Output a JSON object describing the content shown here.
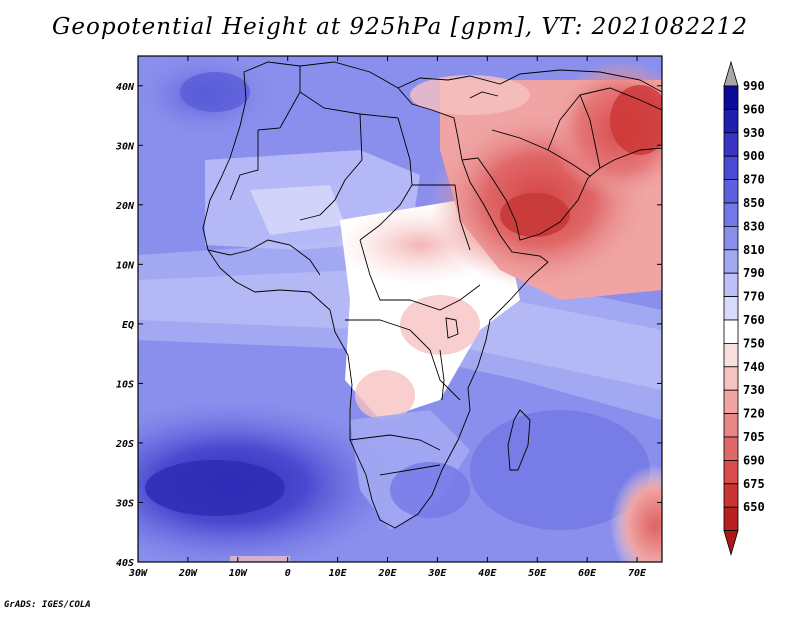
{
  "title": "Geopotential Height at 925hPa [gpm], VT: 2021082212",
  "credit": "GrADS: IGES/COLA",
  "map": {
    "variable": "Geopotential Height",
    "level": "925hPa",
    "units": "gpm",
    "valid_time": "2021082212",
    "lon_range": [
      -30,
      75
    ],
    "lat_range": [
      -40,
      45
    ],
    "lon_ticks": [
      "30W",
      "20W",
      "10W",
      "0",
      "10E",
      "20E",
      "30E",
      "40E",
      "50E",
      "60E",
      "70E"
    ],
    "lat_ticks": [
      "40N",
      "30N",
      "20N",
      "10N",
      "EQ",
      "10S",
      "20S",
      "30S",
      "40S"
    ]
  },
  "colorbar": {
    "levels": [
      "990",
      "960",
      "930",
      "900",
      "870",
      "850",
      "830",
      "810",
      "790",
      "770",
      "760",
      "750",
      "740",
      "730",
      "720",
      "705",
      "690",
      "675",
      "650"
    ],
    "colors": [
      "#0b0b9a",
      "#2020b0",
      "#3a34c4",
      "#4c4ad2",
      "#5e60de",
      "#7478e6",
      "#8a8fed",
      "#a2a8f2",
      "#bcc0f7",
      "#d8dafb",
      "#ffffff",
      "#fbdede",
      "#f6c2c2",
      "#f0a4a4",
      "#e88686",
      "#e06868",
      "#d84c4c",
      "#cc3434",
      "#b82020"
    ],
    "arrow_top_color": "#a8a8a8",
    "arrow_bottom_color": "#b01818"
  }
}
